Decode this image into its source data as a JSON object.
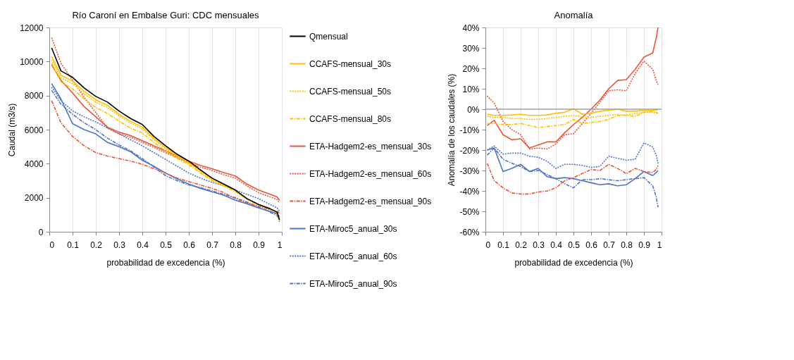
{
  "chart_data": [
    {
      "type": "line",
      "title": "Río Caroní en Embalse Guri: CDC mensuales",
      "xlabel": "probabilidad de excedencia (%)",
      "ylabel": "Caudal (m3/s)",
      "x": [
        0.01,
        0.05,
        0.1,
        0.15,
        0.2,
        0.25,
        0.3,
        0.35,
        0.4,
        0.45,
        0.5,
        0.55,
        0.6,
        0.65,
        0.7,
        0.75,
        0.8,
        0.85,
        0.9,
        0.95,
        0.98,
        0.99
      ],
      "xlim": [
        0,
        1
      ],
      "xticks": [
        0,
        0.1,
        0.2,
        0.3,
        0.4,
        0.5,
        0.6,
        0.7,
        0.8,
        0.9,
        1
      ],
      "ylim": [
        0,
        12000
      ],
      "yticks": [
        0,
        2000,
        4000,
        6000,
        8000,
        10000,
        12000
      ],
      "grid": "x",
      "legend": "right",
      "marker": "none",
      "series": [
        {
          "name": "Qmensual",
          "color": "#000000",
          "line_style": "solid",
          "values": [
            10800,
            9450,
            9070,
            8450,
            7950,
            7620,
            7090,
            6650,
            6300,
            5600,
            5050,
            4550,
            4150,
            3640,
            3150,
            2800,
            2450,
            1950,
            1600,
            1350,
            1150,
            700
          ]
        },
        {
          "name": "CCAFS-mensual_30s",
          "color": "#ffc000",
          "line_style": "solid",
          "values": [
            10300,
            9200,
            8850,
            8250,
            7750,
            7430,
            6900,
            6480,
            6150,
            5480,
            4960,
            4480,
            4100,
            3600,
            3120,
            2790,
            2440,
            1950,
            1600,
            1350,
            1150,
            700
          ]
        },
        {
          "name": "CCAFS-mensual_50s",
          "color": "#ffc000",
          "line_style": "dotted",
          "values": [
            10100,
            9050,
            8700,
            8100,
            7600,
            7300,
            6800,
            6380,
            6050,
            5400,
            4880,
            4400,
            4030,
            3520,
            3050,
            2730,
            2390,
            1920,
            1580,
            1330,
            1130,
            690
          ]
        },
        {
          "name": "CCAFS-mensual_80s",
          "color": "#ffc000",
          "line_style": "dashed",
          "values": [
            9900,
            8800,
            8400,
            7800,
            7300,
            6950,
            6500,
            6080,
            5800,
            5250,
            4750,
            4300,
            3950,
            3450,
            3000,
            2700,
            2360,
            1900,
            1570,
            1320,
            1120,
            690
          ]
        },
        {
          "name": "ETA-Hadgem2-es_mensual_30s",
          "color": "#e8553a",
          "line_style": "solid",
          "values": [
            9800,
            8900,
            8150,
            7350,
            6750,
            6150,
            5850,
            5650,
            5350,
            5050,
            4750,
            4450,
            4150,
            3900,
            3700,
            3480,
            3280,
            2800,
            2450,
            2200,
            2050,
            1850
          ]
        },
        {
          "name": "ETA-Hadgem2-es_mensual_60s",
          "color": "#e8553a",
          "line_style": "dotted",
          "values": [
            11400,
            9900,
            8900,
            7900,
            7000,
            6100,
            5750,
            5550,
            5250,
            4950,
            4650,
            4350,
            4050,
            3800,
            3600,
            3350,
            3150,
            2700,
            2300,
            2050,
            1900,
            1700
          ]
        },
        {
          "name": "ETA-Hadgem2-es_mensual_90s",
          "color": "#e8553a",
          "line_style": "dashed",
          "values": [
            7700,
            6400,
            5600,
            5050,
            4650,
            4450,
            4300,
            4150,
            3970,
            3700,
            3450,
            3150,
            2950,
            2750,
            2550,
            2300,
            1950,
            1700,
            1500,
            1300,
            1200,
            1100
          ]
        },
        {
          "name": "ETA-Miroc5_anual_30s",
          "color": "#4f74c8",
          "line_style": "solid",
          "values": [
            8700,
            7800,
            6350,
            6000,
            5750,
            5250,
            5000,
            4700,
            4200,
            3850,
            3450,
            3100,
            2800,
            2550,
            2350,
            2150,
            1850,
            1650,
            1400,
            1200,
            1050,
            900
          ]
        },
        {
          "name": "ETA-Miroc5_anual_60s",
          "color": "#4f74c8",
          "line_style": "dotted",
          "values": [
            8500,
            7700,
            7100,
            6750,
            6450,
            6100,
            5750,
            5400,
            5050,
            4650,
            4250,
            3850,
            3450,
            3150,
            2900,
            2700,
            2450,
            2200,
            1950,
            1600,
            1400,
            1200
          ]
        },
        {
          "name": "ETA-Miroc5_anual_90s",
          "color": "#4f74c8",
          "line_style": "dashed",
          "values": [
            8300,
            7500,
            6900,
            6400,
            6000,
            5500,
            5100,
            4750,
            4300,
            3800,
            3300,
            3000,
            2750,
            2600,
            2400,
            2200,
            2000,
            1750,
            1450,
            1150,
            950,
            600
          ]
        }
      ]
    },
    {
      "type": "line",
      "title": "Anomalía",
      "xlabel": "probabilidad de excedencia (%)",
      "ylabel": "Anomalía de los caudales (%)",
      "x": [
        0.01,
        0.05,
        0.1,
        0.15,
        0.2,
        0.25,
        0.3,
        0.35,
        0.4,
        0.45,
        0.5,
        0.55,
        0.6,
        0.65,
        0.7,
        0.75,
        0.8,
        0.85,
        0.9,
        0.95,
        0.97,
        0.98
      ],
      "xlim": [
        0,
        1
      ],
      "xticks": [
        0,
        0.1,
        0.2,
        0.3,
        0.4,
        0.5,
        0.6,
        0.7,
        0.8,
        0.9,
        1
      ],
      "ylim": [
        -60,
        40
      ],
      "yticks": [
        {
          "value": -60,
          "label": "-60%"
        },
        {
          "value": -50,
          "label": "-50%"
        },
        {
          "value": -40,
          "label": "-40%"
        },
        {
          "value": -30,
          "label": "-30%"
        },
        {
          "value": -20,
          "label": "-20%"
        },
        {
          "value": -10,
          "label": "-10%"
        },
        {
          "value": 0,
          "label": "0%"
        },
        {
          "value": 10,
          "label": "10%"
        },
        {
          "value": 20,
          "label": "20%"
        },
        {
          "value": 30,
          "label": "30%"
        },
        {
          "value": 40,
          "label": "40%"
        }
      ],
      "grid": "x",
      "marker": "none",
      "ref_lines": [
        {
          "axis": "y",
          "value": 0,
          "color": "#a0a0a0"
        }
      ],
      "series": [
        {
          "color": "#ffc000",
          "line_style": "solid",
          "values": [
            -2.5,
            -3,
            -3,
            -2.8,
            -2.5,
            -3,
            -3,
            -2.8,
            -2,
            -1.5,
            0.2,
            -2.5,
            -2,
            -1,
            -0.5,
            0,
            -1,
            -1,
            -0.5,
            -0.5,
            -0.3,
            -0.3
          ]
        },
        {
          "color": "#ffc000",
          "line_style": "dotted",
          "values": [
            -3.5,
            -4,
            -4,
            -4.5,
            -4.5,
            -5,
            -5,
            -4.5,
            -4,
            -3.5,
            -3,
            -4,
            -4,
            -3.5,
            -3,
            -2.5,
            -3,
            -2,
            -1.5,
            -1.5,
            -2,
            -2
          ]
        },
        {
          "color": "#ffc000",
          "line_style": "dashed",
          "values": [
            -7,
            -7,
            -7.5,
            -7.5,
            -7,
            -8,
            -9,
            -8.5,
            -8,
            -7.5,
            -5,
            -7,
            -6.5,
            -6,
            -5,
            -3,
            -3,
            -3.5,
            -1.5,
            -1,
            -1.5,
            -2
          ]
        },
        {
          "color": "#e8553a",
          "line_style": "solid",
          "values": [
            -8,
            -5.5,
            -12.5,
            -15,
            -14.5,
            -19,
            -17.5,
            -16,
            -16,
            -11.5,
            -7.5,
            -4,
            0,
            4.5,
            10,
            14,
            14.5,
            19.5,
            25.5,
            27.5,
            35,
            40
          ]
        },
        {
          "color": "#e8553a",
          "line_style": "dotted",
          "values": [
            6.5,
            3,
            -6,
            -10,
            -12.5,
            -19.5,
            -19,
            -19.5,
            -17,
            -12.5,
            -12,
            -7,
            -2,
            3.5,
            9,
            9.5,
            9,
            17.5,
            23.5,
            19.5,
            14,
            12
          ]
        },
        {
          "color": "#e8553a",
          "line_style": "dashed",
          "values": [
            -26.5,
            -35,
            -38.5,
            -41,
            -41.5,
            -41.5,
            -40.5,
            -40,
            -38.5,
            -35,
            -33.5,
            -31.5,
            -29.5,
            -30,
            -27,
            -29,
            -31.5,
            -29,
            -30.5,
            -31,
            -29.5,
            -27.5
          ]
        },
        {
          "color": "#4f74c8",
          "line_style": "solid",
          "values": [
            -20,
            -19,
            -30.5,
            -29,
            -27,
            -30.5,
            -29,
            -33,
            -34,
            -33.5,
            -34,
            -35,
            -36,
            -37,
            -36.5,
            -37.5,
            -37,
            -34,
            -30.5,
            -32.5,
            -31,
            -30
          ]
        },
        {
          "color": "#4f74c8",
          "line_style": "dotted",
          "values": [
            -20,
            -18,
            -22,
            -21.5,
            -21.5,
            -23,
            -23.5,
            -25.5,
            -29,
            -27,
            -27,
            -27.5,
            -28.5,
            -28,
            -23,
            -24,
            -25,
            -24.5,
            -16.5,
            -18.5,
            -22.5,
            -26.5
          ]
        },
        {
          "color": "#4f74c8",
          "line_style": "dashed",
          "values": [
            -22.5,
            -19,
            -24.5,
            -26.5,
            -28,
            -30.5,
            -30,
            -32,
            -34,
            -36.5,
            -38.5,
            -34.5,
            -34.5,
            -34,
            -34.5,
            -35,
            -34.5,
            -34,
            -33.5,
            -37.5,
            -43,
            -48
          ]
        }
      ]
    }
  ]
}
